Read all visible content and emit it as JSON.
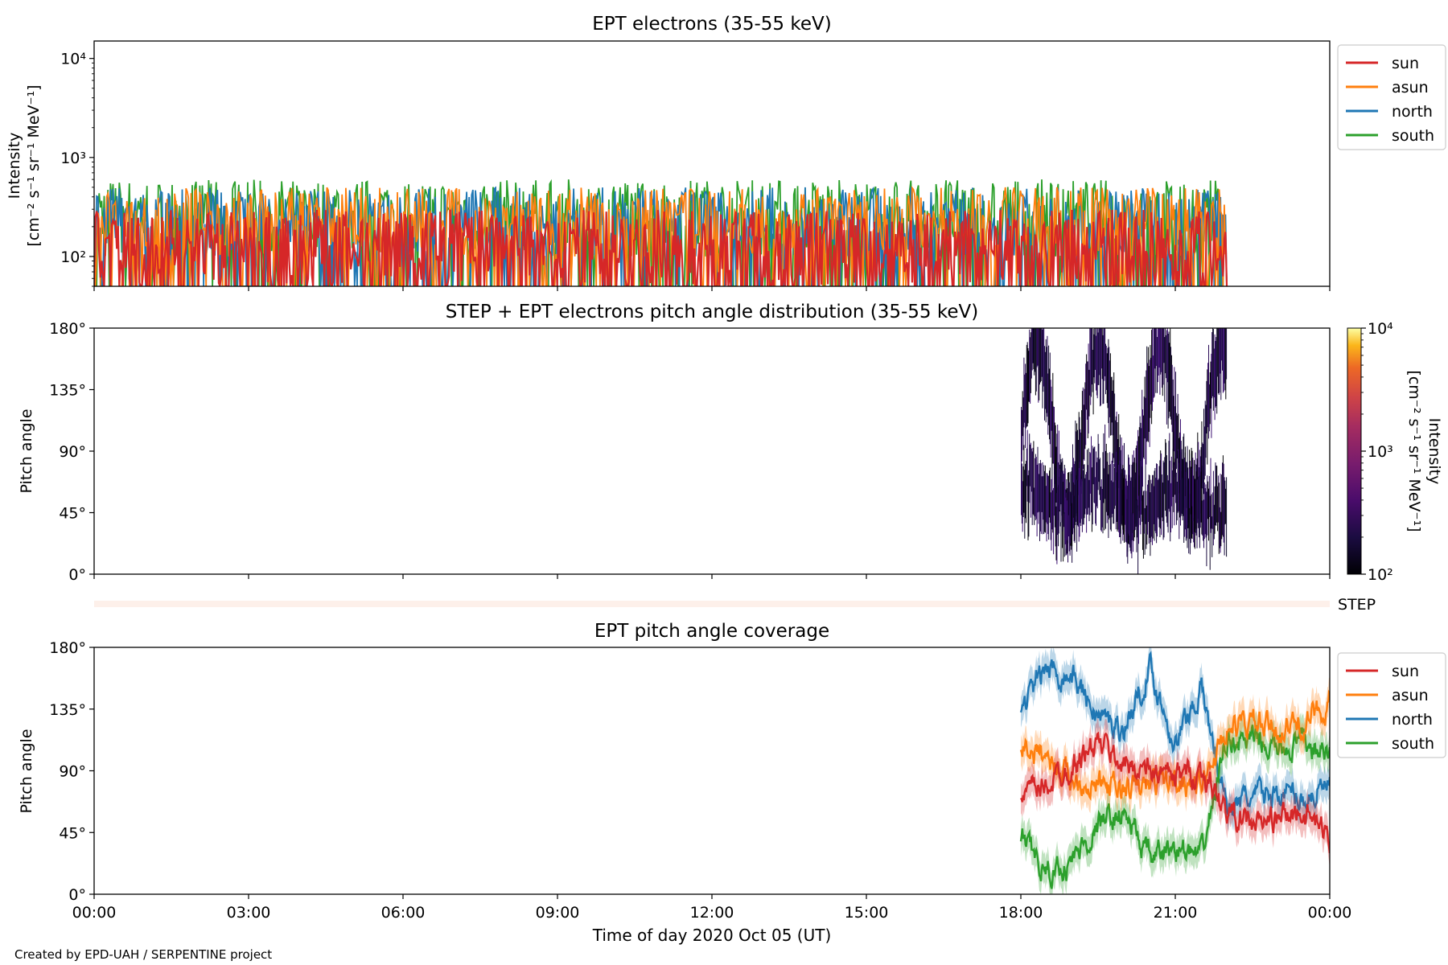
{
  "figure": {
    "footer": "Created by EPD-UAH / SERPENTINE project",
    "xlabel": "Time of day 2020 Oct 05 (UT)",
    "time_ticks": [
      "00:00",
      "03:00",
      "06:00",
      "09:00",
      "12:00",
      "15:00",
      "18:00",
      "21:00",
      "00:00"
    ],
    "step_label": "STEP"
  },
  "colors": {
    "sun": "#d62728",
    "asun": "#ff7f0e",
    "north": "#1f77b4",
    "south": "#2ca02c",
    "step_band": "#fdf0ea"
  },
  "chart_data": [
    {
      "type": "line",
      "title": "EPT electrons (35-55 keV)",
      "ylabel": [
        "Intensity",
        "[cm⁻² s⁻¹ sr⁻¹ MeV⁻¹]"
      ],
      "yscale": "log",
      "ylim": [
        50,
        15000
      ],
      "y_tick_values": [
        100,
        1000,
        10000
      ],
      "y_ticks": [
        "10²",
        "10³",
        "10⁴"
      ],
      "xlim_hours": [
        0,
        24
      ],
      "legend": [
        "sun",
        "asun",
        "north",
        "south"
      ],
      "legend_position": "outside-right",
      "series": [
        {
          "name": "sun",
          "x_range_hours": [
            0,
            22.0
          ],
          "typical_range": [
            50,
            300
          ]
        },
        {
          "name": "asun",
          "x_range_hours": [
            0,
            22.0
          ],
          "typical_range": [
            100,
            500
          ]
        },
        {
          "name": "north",
          "x_range_hours": [
            0,
            22.0
          ],
          "typical_range": [
            100,
            500
          ]
        },
        {
          "name": "south",
          "x_range_hours": [
            0,
            22.0
          ],
          "typical_range": [
            100,
            600
          ]
        }
      ]
    },
    {
      "type": "heatmap",
      "title": "STEP + EPT electrons pitch angle distribution (35-55 keV)",
      "ylabel": "Pitch angle",
      "ylim": [
        0,
        180
      ],
      "y_ticks": [
        "0°",
        "45°",
        "90°",
        "135°",
        "180°"
      ],
      "xlim_hours": [
        0,
        24
      ],
      "data_x_range_hours": [
        18.0,
        22.0
      ],
      "colorbar": {
        "label": [
          "Intensity",
          "[cm⁻² s⁻¹ sr⁻¹ MeV⁻¹]"
        ],
        "scale": "log",
        "range": [
          100,
          10000
        ],
        "ticks": [
          "10²",
          "10³",
          "10⁴"
        ],
        "colormap": "inferno"
      }
    },
    {
      "type": "line",
      "title": "EPT pitch angle coverage",
      "ylabel": "Pitch angle",
      "ylim": [
        0,
        180
      ],
      "y_ticks": [
        "0°",
        "45°",
        "90°",
        "135°",
        "180°"
      ],
      "xlim_hours": [
        0,
        24
      ],
      "legend": [
        "sun",
        "asun",
        "north",
        "south"
      ],
      "legend_position": "outside-right",
      "series": [
        {
          "name": "sun",
          "x": [
            18.0,
            18.5,
            19.0,
            19.5,
            20.0,
            20.5,
            21.0,
            21.5,
            22.0,
            22.5,
            23.0,
            23.5,
            24.0
          ],
          "y": [
            70,
            80,
            95,
            110,
            95,
            90,
            85,
            90,
            60,
            50,
            55,
            60,
            40
          ]
        },
        {
          "name": "asun",
          "x": [
            18.0,
            18.5,
            19.0,
            19.5,
            20.0,
            20.5,
            21.0,
            21.5,
            22.0,
            22.5,
            23.0,
            23.5,
            24.0
          ],
          "y": [
            110,
            100,
            85,
            80,
            75,
            80,
            85,
            80,
            120,
            125,
            120,
            125,
            140
          ]
        },
        {
          "name": "north",
          "x": [
            18.0,
            18.5,
            19.0,
            19.5,
            20.0,
            20.5,
            21.0,
            21.5,
            22.0,
            22.5,
            23.0,
            23.5,
            24.0
          ],
          "y": [
            135,
            165,
            160,
            130,
            120,
            165,
            110,
            150,
            65,
            70,
            75,
            70,
            80
          ]
        },
        {
          "name": "south",
          "x": [
            18.0,
            18.5,
            19.0,
            19.5,
            20.0,
            20.5,
            21.0,
            21.5,
            22.0,
            22.5,
            23.0,
            23.5,
            24.0
          ],
          "y": [
            40,
            15,
            25,
            50,
            60,
            25,
            35,
            25,
            115,
            110,
            105,
            110,
            100
          ]
        }
      ]
    }
  ]
}
